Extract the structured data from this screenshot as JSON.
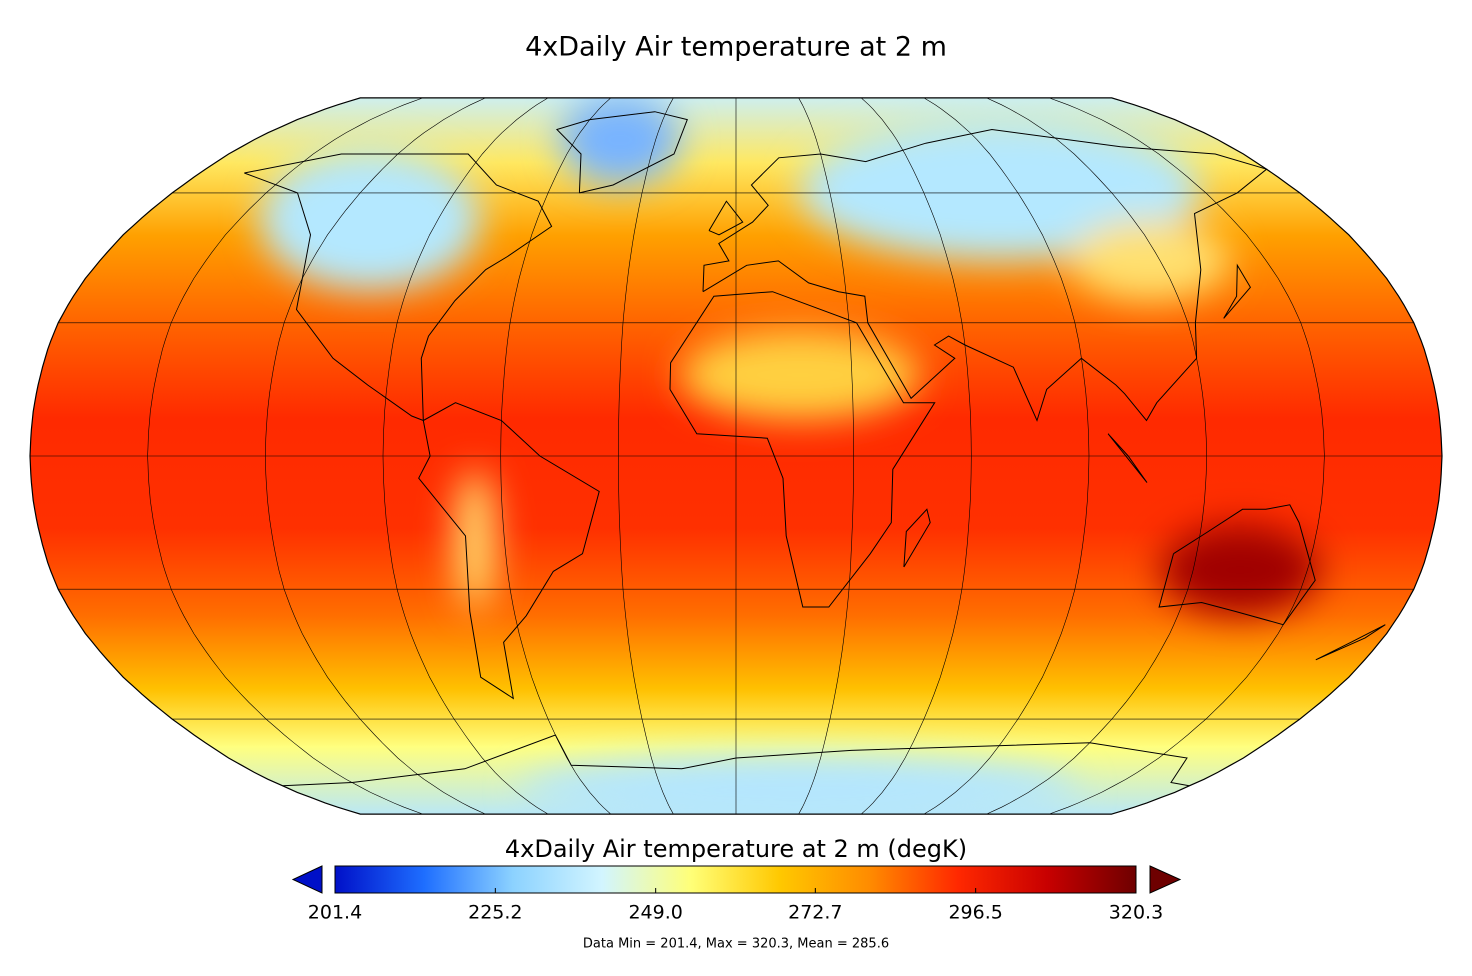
{
  "title": "4xDaily Air temperature at 2 m",
  "colorbar": {
    "title": "4xDaily Air temperature at 2 m (degK)",
    "lim": [
      201.4,
      320.3
    ],
    "ticks": [
      201.4,
      225.2,
      {
        "value": 249.0,
        "label": "249.0"
      },
      272.7,
      296.5,
      320.3
    ],
    "colormap": [
      "#0010c8",
      "#1e6eff",
      "#8cd2ff",
      "#d2f5ff",
      "#ffff78",
      "#ffc800",
      "#ff8c00",
      "#ff2800",
      "#c80000",
      "#6e0000"
    ]
  },
  "footer": "Data Min = 201.4, Max = 320.3, Mean = 285.6"
}
